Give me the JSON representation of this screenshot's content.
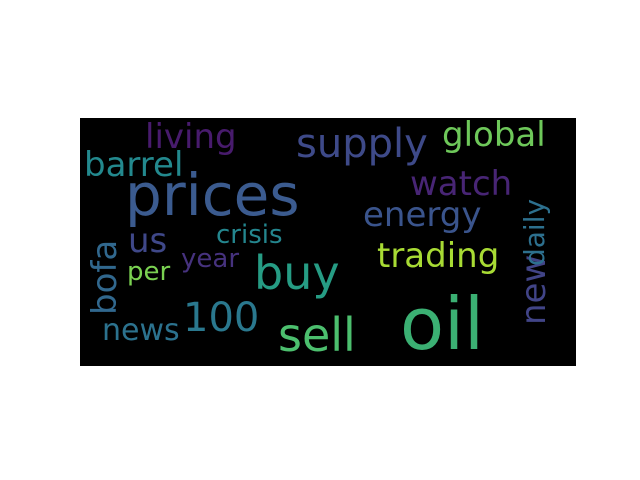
{
  "word_cloud": {
    "background_color": "#000000",
    "words": [
      {
        "id": "oil",
        "text": "oil",
        "color": "#3bb073"
      },
      {
        "id": "prices",
        "text": "prices",
        "color": "#3b5b8f"
      },
      {
        "id": "buy",
        "text": "buy",
        "color": "#269c84"
      },
      {
        "id": "sell",
        "text": "sell",
        "color": "#4cbf6e"
      },
      {
        "id": "supply",
        "text": "supply",
        "color": "#3e4a89"
      },
      {
        "id": "global",
        "text": "global",
        "color": "#6ec85a"
      },
      {
        "id": "energy",
        "text": "energy",
        "color": "#3a548c"
      },
      {
        "id": "watch",
        "text": "watch",
        "color": "#482575"
      },
      {
        "id": "trading",
        "text": "trading",
        "color": "#a8db34"
      },
      {
        "id": "new",
        "text": "new",
        "color": "#414487"
      },
      {
        "id": "daily",
        "text": "daily",
        "color": "#2d708e"
      },
      {
        "id": "living",
        "text": "living",
        "color": "#481b6d"
      },
      {
        "id": "barrel",
        "text": "barrel",
        "color": "#23898e"
      },
      {
        "id": "bofa",
        "text": "bofa",
        "color": "#31688e"
      },
      {
        "id": "us",
        "text": "us",
        "color": "#3f4889"
      },
      {
        "id": "crisis",
        "text": "crisis",
        "color": "#24868e"
      },
      {
        "id": "year",
        "text": "year",
        "color": "#46327e"
      },
      {
        "id": "per",
        "text": "per",
        "color": "#7ad151"
      },
      {
        "id": "n100",
        "text": "100",
        "color": "#2a788e"
      },
      {
        "id": "news",
        "text": "news",
        "color": "#2c728e"
      }
    ]
  }
}
